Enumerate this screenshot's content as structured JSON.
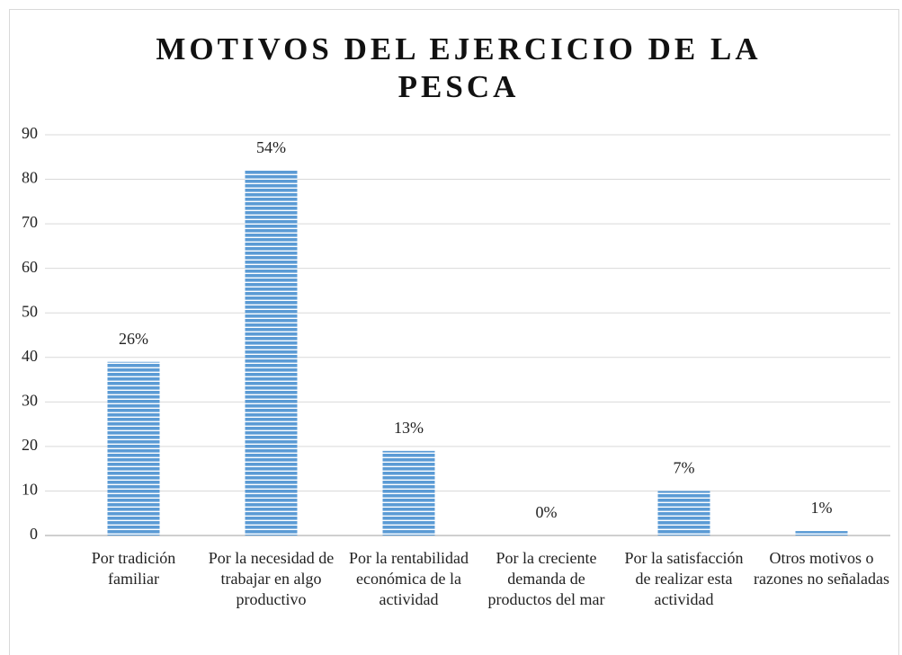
{
  "chart_data": {
    "type": "bar",
    "title": "MOTIVOS DEL EJERCICIO DE LA PESCA",
    "categories": [
      "Por tradición familiar",
      "Por la necesidad de trabajar en algo productivo",
      "Por la rentabilidad económica de la actividad",
      "Por la creciente demanda de productos del mar",
      "Por la satisfacción de realizar esta actividad",
      "Otros motivos o razones no señaladas"
    ],
    "values": [
      39,
      82,
      19,
      0,
      10,
      1
    ],
    "value_labels": [
      "26%",
      "54%",
      "13%",
      "0%",
      "7%",
      "1%"
    ],
    "color": "#5b9bd5",
    "ylim": [
      0,
      90
    ],
    "yticks": [
      0,
      10,
      20,
      30,
      40,
      50,
      60,
      70,
      80,
      90
    ],
    "grid": true
  }
}
